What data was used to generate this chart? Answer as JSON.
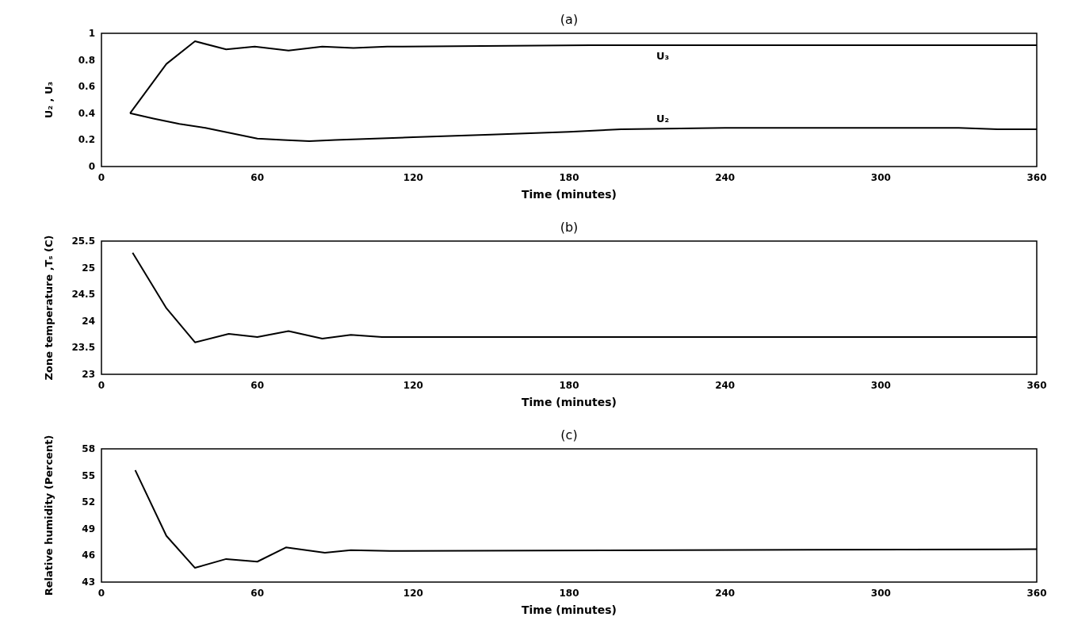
{
  "chart_data": [
    {
      "type": "line",
      "title": "(a)",
      "xlabel": "Time (minutes)",
      "ylabel": "U₂ , U₃",
      "xlim": [
        0,
        360
      ],
      "xticks": [
        0,
        60,
        120,
        180,
        240,
        300,
        360
      ],
      "ylim": [
        0,
        1
      ],
      "yticks": [
        0,
        0.2,
        0.4,
        0.6,
        0.8,
        1
      ],
      "series": [
        {
          "name": "U₃",
          "color": "#000000",
          "x": [
            11,
            25,
            36,
            48,
            59,
            72,
            85,
            97,
            110,
            188,
            360
          ],
          "values": [
            0.4,
            0.77,
            0.94,
            0.88,
            0.9,
            0.87,
            0.9,
            0.89,
            0.9,
            0.91,
            0.91
          ]
        },
        {
          "name": "U₂",
          "color": "#000000",
          "x": [
            11,
            20,
            30,
            40,
            50,
            60,
            70,
            80,
            90,
            120,
            150,
            180,
            200,
            240,
            330,
            345,
            360
          ],
          "values": [
            0.4,
            0.36,
            0.32,
            0.29,
            0.25,
            0.21,
            0.2,
            0.19,
            0.2,
            0.22,
            0.24,
            0.26,
            0.28,
            0.29,
            0.29,
            0.28,
            0.28
          ]
        }
      ]
    },
    {
      "type": "line",
      "title": "(b)",
      "xlabel": "Time (minutes)",
      "ylabel": "Zone temperature ,Tₛ (C)",
      "xlim": [
        0,
        360
      ],
      "xticks": [
        0,
        60,
        120,
        180,
        240,
        300,
        360
      ],
      "ylim": [
        23,
        25.5
      ],
      "yticks": [
        23,
        23.5,
        24,
        24.5,
        25,
        25.5
      ],
      "series": [
        {
          "color": "#000000",
          "x": [
            12,
            25,
            36,
            49,
            60,
            72,
            85,
            96,
            108,
            360
          ],
          "values": [
            25.28,
            24.24,
            23.6,
            23.76,
            23.7,
            23.81,
            23.67,
            23.74,
            23.7,
            23.7
          ]
        }
      ]
    },
    {
      "type": "line",
      "title": "(c)",
      "xlabel": "Time (minutes)",
      "ylabel": "Relative humidity (Percent)",
      "xlim": [
        0,
        360
      ],
      "xticks": [
        0,
        60,
        120,
        180,
        240,
        300,
        360
      ],
      "ylim": [
        43,
        58
      ],
      "yticks": [
        43,
        46,
        49,
        52,
        55,
        58
      ],
      "series": [
        {
          "color": "#000000",
          "x": [
            13,
            25,
            36,
            48,
            60,
            71,
            86,
            96,
            111,
            360
          ],
          "values": [
            55.6,
            48.2,
            44.6,
            45.6,
            45.3,
            46.9,
            46.3,
            46.6,
            46.5,
            46.7
          ]
        }
      ]
    }
  ]
}
